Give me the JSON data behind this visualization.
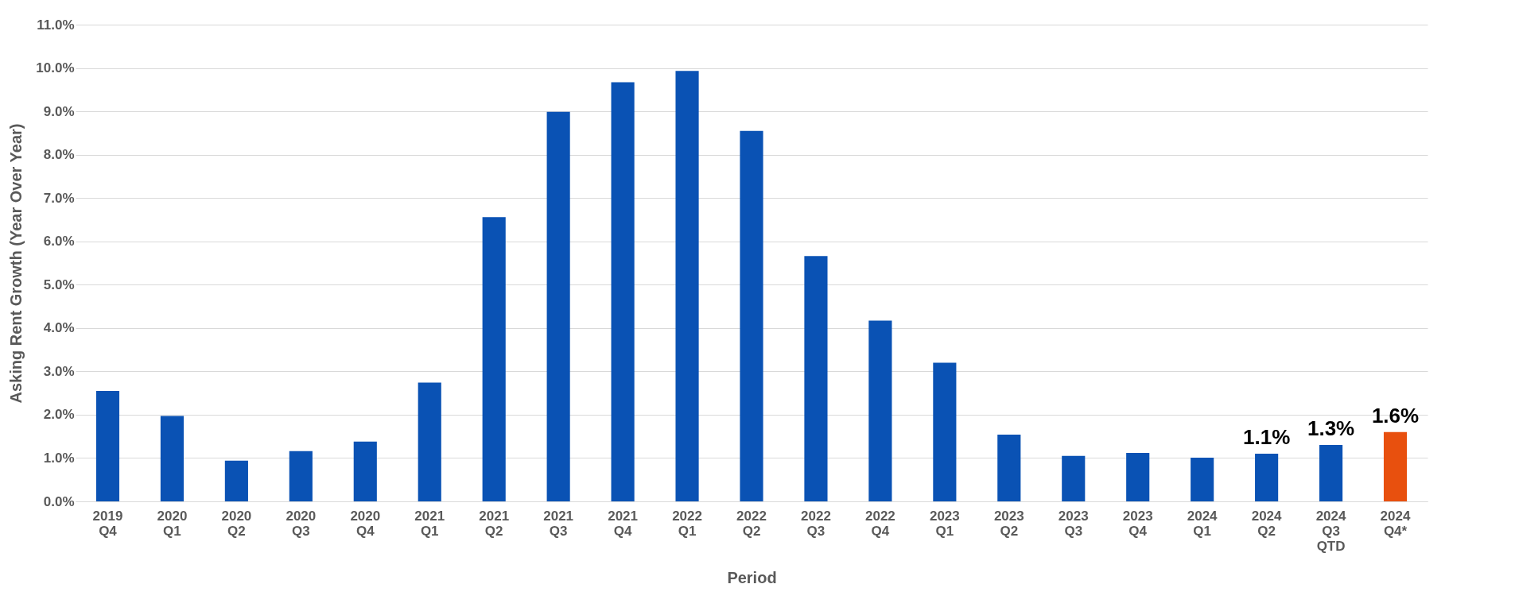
{
  "chart_data": {
    "type": "bar",
    "xlabel": "Period",
    "ylabel": "Asking Rent Growth (Year Over Year)",
    "categories": [
      "2019 Q4",
      "2020 Q1",
      "2020 Q2",
      "2020 Q3",
      "2020 Q4",
      "2021 Q1",
      "2021 Q2",
      "2021 Q3",
      "2021 Q4",
      "2022 Q1",
      "2022 Q2",
      "2022 Q3",
      "2022 Q4",
      "2023 Q1",
      "2023 Q2",
      "2023 Q3",
      "2023 Q4",
      "2024 Q1",
      "2024 Q2",
      "2024 Q3 QTD",
      "2024 Q4*"
    ],
    "values": [
      2.55,
      1.97,
      0.94,
      1.16,
      1.38,
      2.74,
      6.56,
      8.99,
      9.67,
      9.93,
      8.55,
      5.66,
      4.17,
      3.2,
      1.54,
      1.05,
      1.12,
      1.01,
      1.1,
      1.3,
      1.6
    ],
    "colors": [
      "#0a52b4",
      "#0a52b4",
      "#0a52b4",
      "#0a52b4",
      "#0a52b4",
      "#0a52b4",
      "#0a52b4",
      "#0a52b4",
      "#0a52b4",
      "#0a52b4",
      "#0a52b4",
      "#0a52b4",
      "#0a52b4",
      "#0a52b4",
      "#0a52b4",
      "#0a52b4",
      "#0a52b4",
      "#0a52b4",
      "#0a52b4",
      "#0a52b4",
      "#e8500e"
    ],
    "value_labels": [
      null,
      null,
      null,
      null,
      null,
      null,
      null,
      null,
      null,
      null,
      null,
      null,
      null,
      null,
      null,
      null,
      null,
      null,
      "1.1%",
      "1.3%",
      "1.6%"
    ],
    "ylim": [
      0,
      11
    ],
    "yticks": [
      {
        "value": 0,
        "label": "0.0%"
      },
      {
        "value": 1,
        "label": "1.0%"
      },
      {
        "value": 2,
        "label": "2.0%"
      },
      {
        "value": 3,
        "label": "3.0%"
      },
      {
        "value": 4,
        "label": "4.0%"
      },
      {
        "value": 5,
        "label": "5.0%"
      },
      {
        "value": 6,
        "label": "6.0%"
      },
      {
        "value": 7,
        "label": "7.0%"
      },
      {
        "value": 8,
        "label": "8.0%"
      },
      {
        "value": 9,
        "label": "9.0%"
      },
      {
        "value": 10,
        "label": "10.0%"
      },
      {
        "value": 11,
        "label": "11.0%"
      }
    ],
    "grid": "y"
  }
}
